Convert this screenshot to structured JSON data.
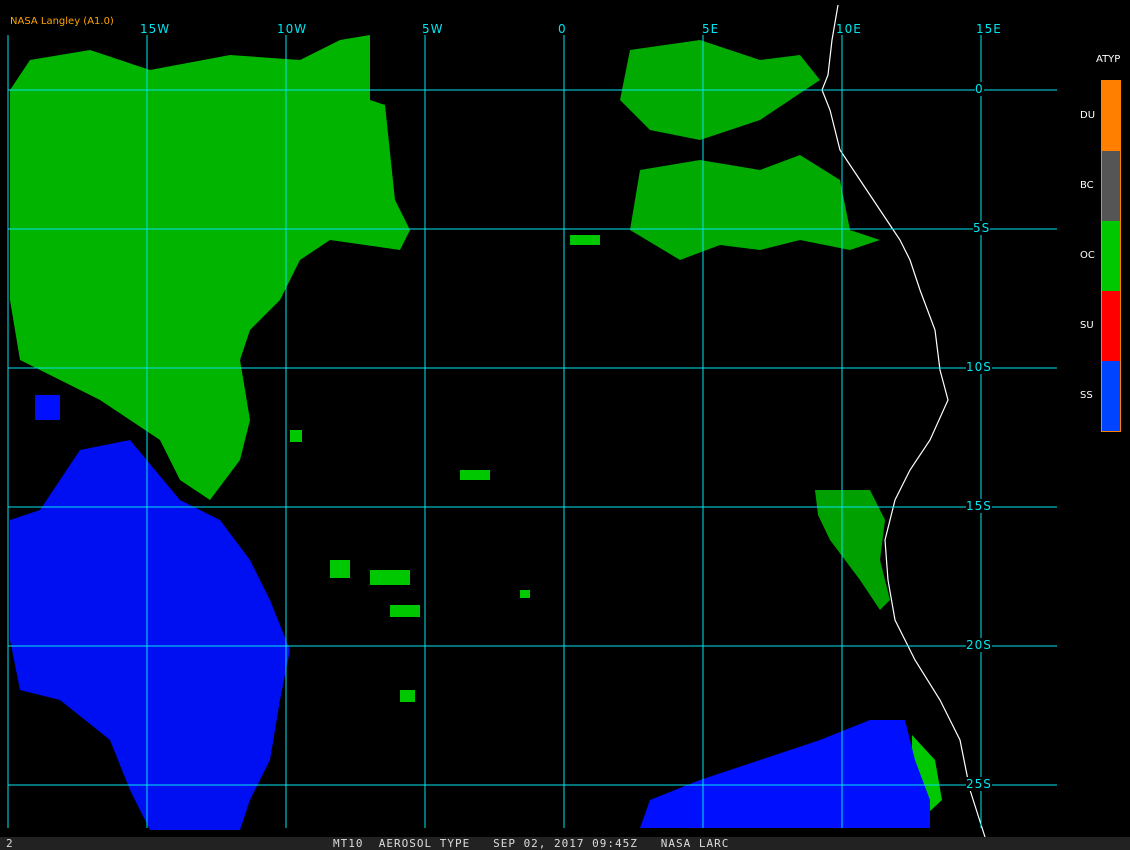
{
  "credit": "NASA Langley (A1.0)",
  "footer": {
    "frame": "2",
    "title": "MT10  AEROSOL TYPE   SEP 02, 2017 09:45Z   NASA LARC"
  },
  "longitude_labels": [
    "15W",
    "10W",
    "5W",
    "0",
    "5E",
    "10E",
    "15E"
  ],
  "latitude_labels": [
    "0",
    "5S",
    "10S",
    "15S",
    "20S",
    "25S"
  ],
  "legend": {
    "title": "ATYP",
    "items": [
      {
        "label": "DU",
        "color": "#ff8000"
      },
      {
        "label": "BC",
        "color": "#555555"
      },
      {
        "label": "OC",
        "color": "#00c800"
      },
      {
        "label": "SU",
        "color": "#ff0000"
      },
      {
        "label": "SS",
        "color": "#0044ff"
      }
    ]
  },
  "colors": {
    "grid": "#00e5f0",
    "coast": "#ffffff",
    "background": "#000000"
  }
}
